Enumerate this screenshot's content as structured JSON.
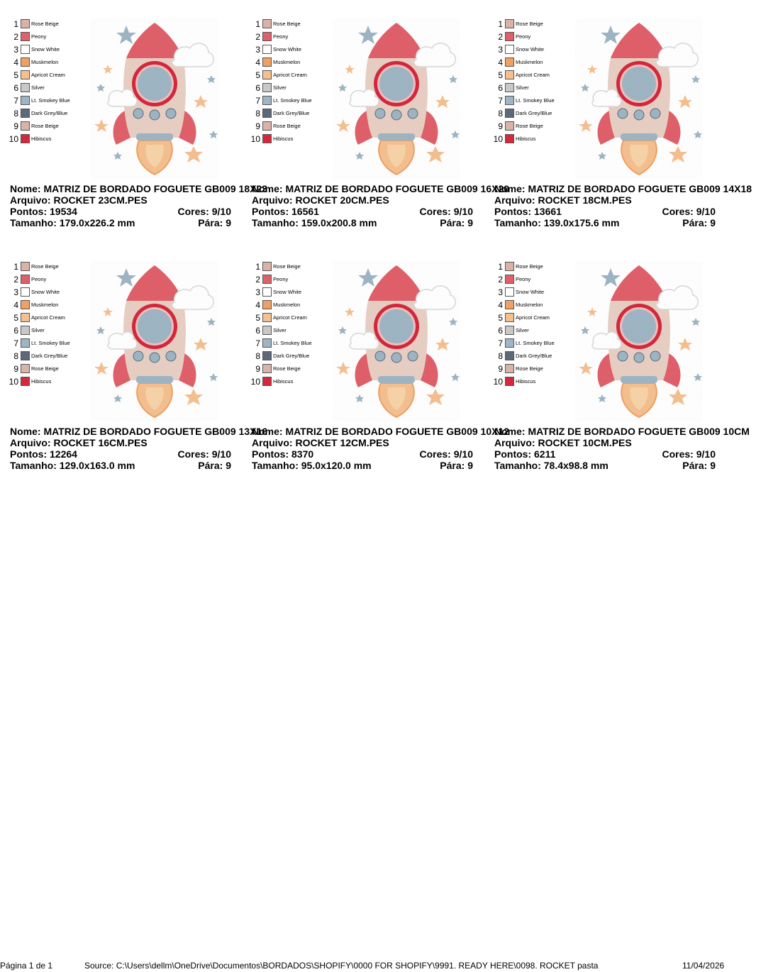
{
  "palette": [
    {
      "num": "1",
      "name": "Rose Beige",
      "color": "#d9b3a8"
    },
    {
      "num": "2",
      "name": "Peony",
      "color": "#e0606a"
    },
    {
      "num": "3",
      "name": "Snow White",
      "color": "#ffffff"
    },
    {
      "num": "4",
      "name": "Muskmelon",
      "color": "#f0a060"
    },
    {
      "num": "5",
      "name": "Apricot Cream",
      "color": "#f5c090"
    },
    {
      "num": "6",
      "name": "Silver",
      "color": "#c8c8c8"
    },
    {
      "num": "7",
      "name": "Lt. Smokey Blue",
      "color": "#9eb5c4"
    },
    {
      "num": "8",
      "name": "Dark Grey/Blue",
      "color": "#5d6878"
    },
    {
      "num": "9",
      "name": "Rose Beige",
      "color": "#d9b3a8"
    },
    {
      "num": "10",
      "name": "Hibiscus",
      "color": "#d4283c"
    }
  ],
  "designs": [
    {
      "nome_label": "Nome:",
      "nome": "MATRIZ DE BORDADO FOGUETE GB009 18X23",
      "arquivo_label": "Arquivo:",
      "arquivo": "ROCKET 23CM.PES",
      "pontos_label": "Pontos:",
      "pontos": "19534",
      "cores_label": "Cores:",
      "cores": "9/10",
      "tamanho_label": "Tamanho:",
      "tamanho": "179.0x226.2 mm",
      "para_label": "Pára:",
      "para": "9"
    },
    {
      "nome_label": "Nome:",
      "nome": "MATRIZ DE BORDADO FOGUETE GB009 16X20",
      "arquivo_label": "Arquivo:",
      "arquivo": "ROCKET 20CM.PES",
      "pontos_label": "Pontos:",
      "pontos": "16561",
      "cores_label": "Cores:",
      "cores": "9/10",
      "tamanho_label": "Tamanho:",
      "tamanho": "159.0x200.8 mm",
      "para_label": "Pára:",
      "para": "9"
    },
    {
      "nome_label": "Nome:",
      "nome": "MATRIZ DE BORDADO FOGUETE GB009 14X18",
      "arquivo_label": "Arquivo:",
      "arquivo": "ROCKET 18CM.PES",
      "pontos_label": "Pontos:",
      "pontos": "13661",
      "cores_label": "Cores:",
      "cores": "9/10",
      "tamanho_label": "Tamanho:",
      "tamanho": "139.0x175.6 mm",
      "para_label": "Pára:",
      "para": "9"
    },
    {
      "nome_label": "Nome:",
      "nome": "MATRIZ DE BORDADO FOGUETE GB009 13X16",
      "arquivo_label": "Arquivo:",
      "arquivo": "ROCKET 16CM.PES",
      "pontos_label": "Pontos:",
      "pontos": "12264",
      "cores_label": "Cores:",
      "cores": "9/10",
      "tamanho_label": "Tamanho:",
      "tamanho": "129.0x163.0 mm",
      "para_label": "Pára:",
      "para": "9"
    },
    {
      "nome_label": "Nome:",
      "nome": "MATRIZ DE BORDADO FOGUETE GB009 10X12",
      "arquivo_label": "Arquivo:",
      "arquivo": "ROCKET 12CM.PES",
      "pontos_label": "Pontos:",
      "pontos": "8370",
      "cores_label": "Cores:",
      "cores": "9/10",
      "tamanho_label": "Tamanho:",
      "tamanho": "95.0x120.0 mm",
      "para_label": "Pára:",
      "para": "9"
    },
    {
      "nome_label": "Nome:",
      "nome": "MATRIZ DE BORDADO FOGUETE GB009 10CM",
      "arquivo_label": "Arquivo:",
      "arquivo": "ROCKET 10CM.PES",
      "pontos_label": "Pontos:",
      "pontos": "6211",
      "cores_label": "Cores:",
      "cores": "9/10",
      "tamanho_label": "Tamanho:",
      "tamanho": "78.4x98.8 mm",
      "para_label": "Pára:",
      "para": "9"
    }
  ],
  "footer": {
    "page": "Página 1 de 1",
    "source": "Source: C:\\Users\\dellm\\OneDrive\\Documentos\\BORDADOS\\SHOPIFY\\0000 FOR SHOPIFY\\9991. READY HERE\\0098. ROCKET pasta",
    "date": "11/04/2026"
  }
}
